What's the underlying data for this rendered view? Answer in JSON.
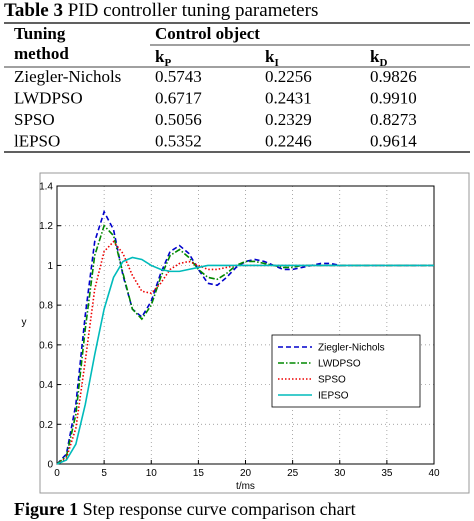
{
  "table": {
    "label": "Table 3",
    "caption": "PID controller tuning parameters",
    "header": {
      "method_line1": "Tuning",
      "method_line2": "method",
      "group": "Control object"
    },
    "columns": [
      {
        "symbol": "k",
        "subscript": "P"
      },
      {
        "symbol": "k",
        "subscript": "I"
      },
      {
        "symbol": "k",
        "subscript": "D"
      }
    ],
    "rows": [
      [
        "Ziegler-Nichols",
        "0.5743",
        "0.2256",
        "0.9826"
      ],
      [
        "LWDPSO",
        "0.6717",
        "0.2431",
        "0.9910"
      ],
      [
        "SPSO",
        "0.5056",
        "0.2329",
        "0.8273"
      ],
      [
        "lEPSO",
        "0.5352",
        "0.2246",
        "0.9614"
      ]
    ]
  },
  "figure": {
    "label": "Figure 1",
    "caption": "Step response curve comparison chart"
  },
  "chart_data": {
    "type": "line",
    "xlabel": "t/ms",
    "ylabel": "y",
    "xlim": [
      0,
      40
    ],
    "ylim": [
      0,
      1.4
    ],
    "xticks": [
      0,
      5,
      10,
      15,
      20,
      25,
      30,
      35,
      40
    ],
    "yticks": [
      0,
      0.2,
      0.4,
      0.6,
      0.8,
      1,
      1.2,
      1.4
    ],
    "grid": true,
    "legend": "center right",
    "x": [
      0,
      1,
      2,
      3,
      4,
      5,
      6,
      7,
      8,
      9,
      10,
      11,
      12,
      13,
      14,
      15,
      16,
      17,
      18,
      19,
      20,
      21,
      22,
      23,
      24,
      25,
      26,
      27,
      28,
      29,
      30,
      31,
      32,
      33,
      34,
      35,
      36,
      37,
      38,
      39,
      40
    ],
    "series": [
      {
        "name": "Ziegler-Nichols",
        "color": "#0000cc",
        "style": "dashed",
        "values": [
          0,
          0.05,
          0.3,
          0.75,
          1.12,
          1.27,
          1.18,
          0.95,
          0.78,
          0.74,
          0.82,
          0.96,
          1.07,
          1.1,
          1.06,
          0.98,
          0.91,
          0.9,
          0.94,
          0.99,
          1.02,
          1.03,
          1.02,
          1,
          0.98,
          0.98,
          0.99,
          1,
          1.01,
          1.01,
          1,
          1,
          1,
          1,
          1,
          1,
          1,
          1,
          1,
          1,
          1
        ]
      },
      {
        "name": "LWDPSO",
        "color": "#008800",
        "style": "dashdot",
        "values": [
          0,
          0.04,
          0.25,
          0.68,
          1.05,
          1.2,
          1.15,
          0.96,
          0.78,
          0.73,
          0.8,
          0.94,
          1.05,
          1.08,
          1.04,
          0.98,
          0.94,
          0.93,
          0.96,
          1,
          1.02,
          1.02,
          1.01,
          1,
          0.99,
          0.99,
          1,
          1,
          1,
          1,
          1,
          1,
          1,
          1,
          1,
          1,
          1,
          1,
          1,
          1,
          1
        ]
      },
      {
        "name": "SPSO",
        "color": "#ee0000",
        "style": "dotted",
        "values": [
          0,
          0.03,
          0.18,
          0.52,
          0.88,
          1.07,
          1.12,
          1.06,
          0.95,
          0.87,
          0.86,
          0.91,
          0.98,
          1.01,
          1.02,
          1,
          0.98,
          0.98,
          0.99,
          1,
          1,
          1,
          1,
          1,
          1,
          1,
          1,
          1,
          1,
          1,
          1,
          1,
          1,
          1,
          1,
          1,
          1,
          1,
          1,
          1,
          1
        ]
      },
      {
        "name": "IEPSO",
        "color": "#00bbbb",
        "style": "solid",
        "values": [
          0,
          0.02,
          0.1,
          0.3,
          0.55,
          0.78,
          0.94,
          1.02,
          1.04,
          1.03,
          1,
          0.98,
          0.97,
          0.97,
          0.98,
          0.99,
          1,
          1,
          1,
          1,
          1,
          1,
          1,
          1,
          1,
          1,
          1,
          1,
          1,
          1,
          1,
          1,
          1,
          1,
          1,
          1,
          1,
          1,
          1,
          1,
          1
        ]
      }
    ]
  }
}
